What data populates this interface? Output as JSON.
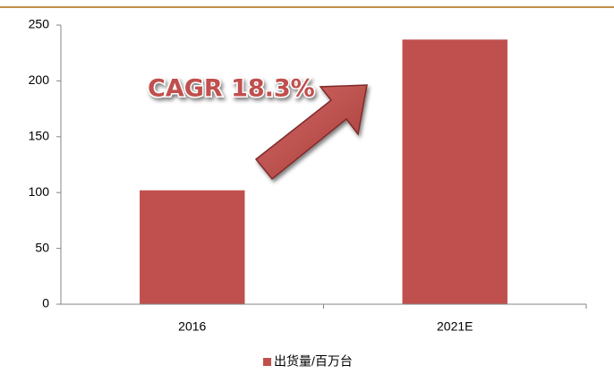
{
  "chart_data": {
    "type": "bar",
    "categories": [
      "2016",
      "2021E"
    ],
    "series": [
      {
        "name": "出货量/百万台",
        "color": "#c0504d",
        "values": [
          102,
          237
        ]
      }
    ],
    "ylim": [
      0,
      250
    ],
    "yticks": [
      0,
      50,
      100,
      150,
      200,
      250
    ],
    "legend": "bottom",
    "annotation": "CAGR 18.3%"
  }
}
